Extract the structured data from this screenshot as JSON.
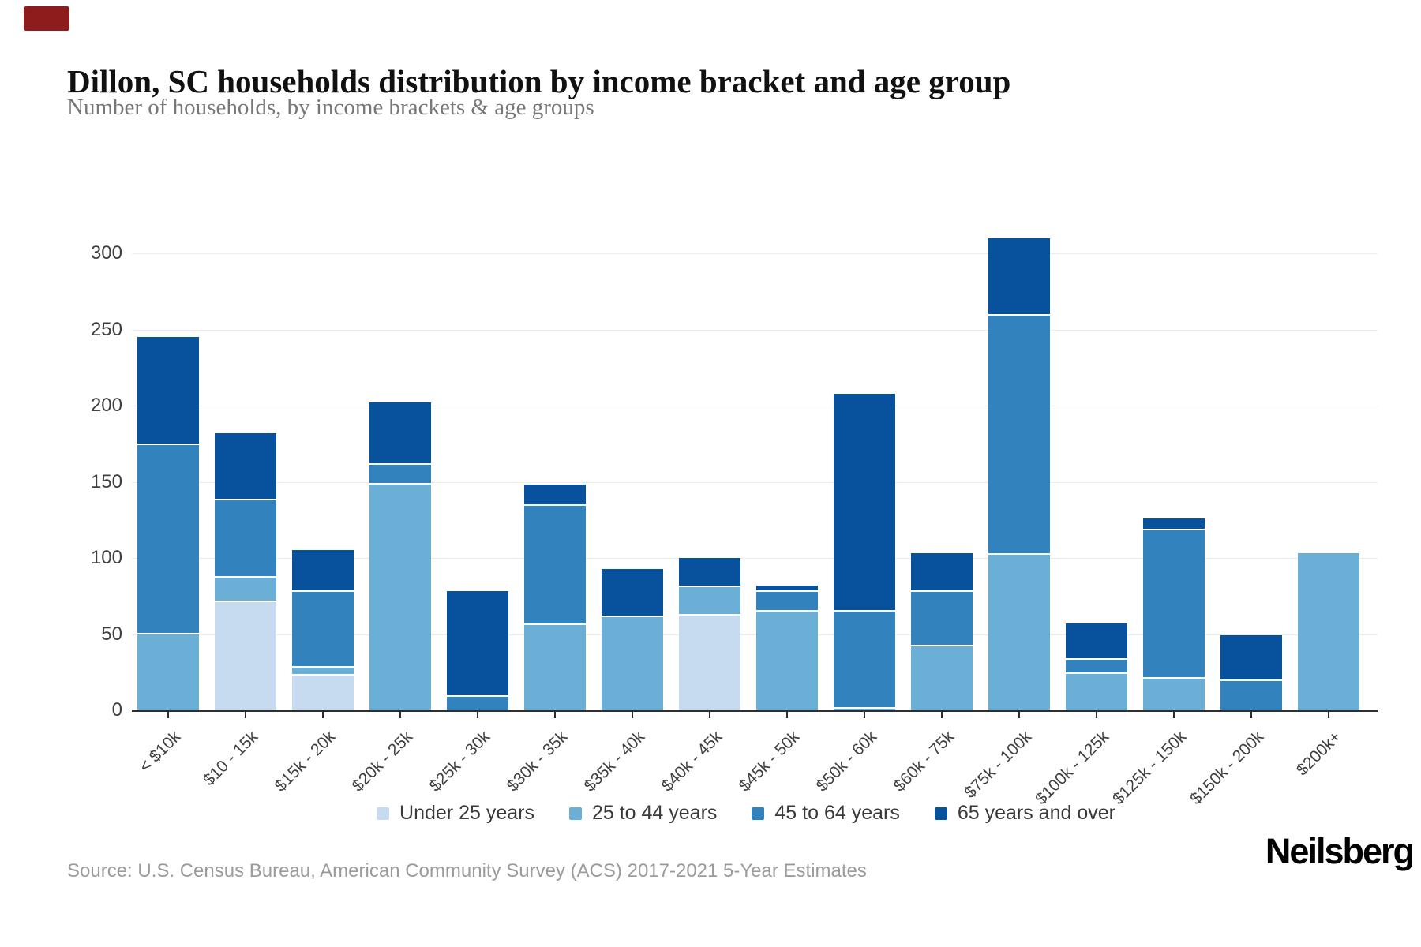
{
  "page": {
    "title": "Dillon, SC households distribution by income bracket and age group",
    "subtitle": "Number of households, by income brackets & age groups",
    "source": "Source: U.S. Census Bureau, American Community Survey (ACS) 2017-2021 5-Year Estimates",
    "logo_text": "Neilsberg",
    "accent_block_color": "#8e1c1c"
  },
  "chart_data": {
    "type": "bar",
    "stacked": true,
    "title": "Dillon, SC households distribution by income bracket and age group",
    "xlabel": "",
    "ylabel": "",
    "ylim": [
      0,
      300
    ],
    "yticks": [
      0,
      50,
      100,
      150,
      200,
      250,
      300
    ],
    "grid": true,
    "legend_position": "bottom",
    "categories": [
      "< $10k",
      "$10 - 15k",
      "$15k - 20k",
      "$20k - 25k",
      "$25k - 30k",
      "$30k - 35k",
      "$35k - 40k",
      "$40k - 45k",
      "$45k - 50k",
      "$50k - 60k",
      "$60k - 75k",
      "$75k - 100k",
      "$100k - 125k",
      "$125k - 150k",
      "$150k - 200k",
      "$200k+"
    ],
    "series": [
      {
        "name": "Under 25 years",
        "color": "#c6dbef",
        "values": [
          0,
          72,
          24,
          0,
          0,
          0,
          0,
          63,
          0,
          0,
          0,
          0,
          0,
          0,
          0,
          0
        ]
      },
      {
        "name": "25 to 44 years",
        "color": "#6baed6",
        "values": [
          51,
          16,
          5,
          149,
          0,
          57,
          62,
          19,
          66,
          2,
          43,
          103,
          25,
          22,
          0,
          103
        ]
      },
      {
        "name": "45 to 64 years",
        "color": "#3182bd",
        "values": [
          124,
          51,
          50,
          13,
          10,
          78,
          0,
          0,
          13,
          64,
          36,
          157,
          9,
          97,
          20,
          0
        ]
      },
      {
        "name": "65 years and over",
        "color": "#08519c",
        "values": [
          70,
          43,
          26,
          40,
          68,
          13,
          31,
          18,
          3,
          142,
          24,
          50,
          23,
          7,
          29,
          0
        ]
      }
    ],
    "totals": [
      245,
      182,
      105,
      202,
      78,
      148,
      93,
      100,
      82,
      208,
      103,
      310,
      57,
      126,
      49,
      103
    ]
  }
}
